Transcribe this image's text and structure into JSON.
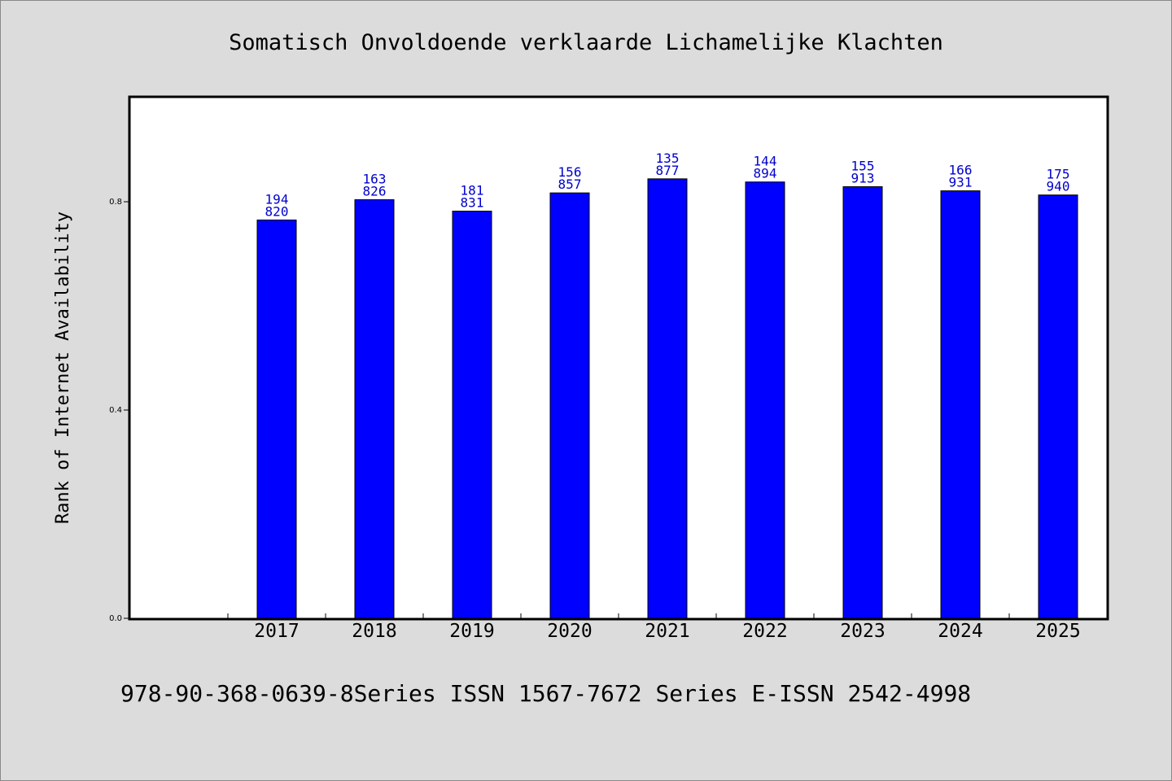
{
  "chart_data": {
    "type": "bar",
    "title": "Somatisch Onvoldoende verklaarde Lichamelijke Klachten",
    "xlabel": "",
    "ylabel": "Rank of Internet Availability",
    "categories": [
      "2017",
      "2018",
      "2019",
      "2020",
      "2021",
      "2022",
      "2023",
      "2024",
      "2025"
    ],
    "values": [
      0.765,
      0.804,
      0.782,
      0.817,
      0.844,
      0.838,
      0.829,
      0.821,
      0.813
    ],
    "data_labels": [
      [
        "194",
        "820"
      ],
      [
        "163",
        "826"
      ],
      [
        "181",
        "831"
      ],
      [
        "156",
        "857"
      ],
      [
        "135",
        "877"
      ],
      [
        "144",
        "894"
      ],
      [
        "155",
        "913"
      ],
      [
        "166",
        "931"
      ],
      [
        "175",
        "940"
      ]
    ],
    "yticks": [
      {
        "value": 0.0,
        "label": "0.0"
      },
      {
        "value": 0.4,
        "label": "0.4"
      },
      {
        "value": 0.8,
        "label": "0.8"
      }
    ],
    "ylim": [
      0,
      1.0
    ],
    "x_slots": 10,
    "first_category_slot": 1,
    "grid": false,
    "legend": "none",
    "colors": {
      "bar": "#0000ff",
      "bar_label": "#0000cc",
      "plot_background": "#ffffff",
      "page_background": "#dcdcdc"
    }
  },
  "footer": "978-90-368-0639-8Series ISSN 1567-7672 Series E-ISSN 2542-4998"
}
